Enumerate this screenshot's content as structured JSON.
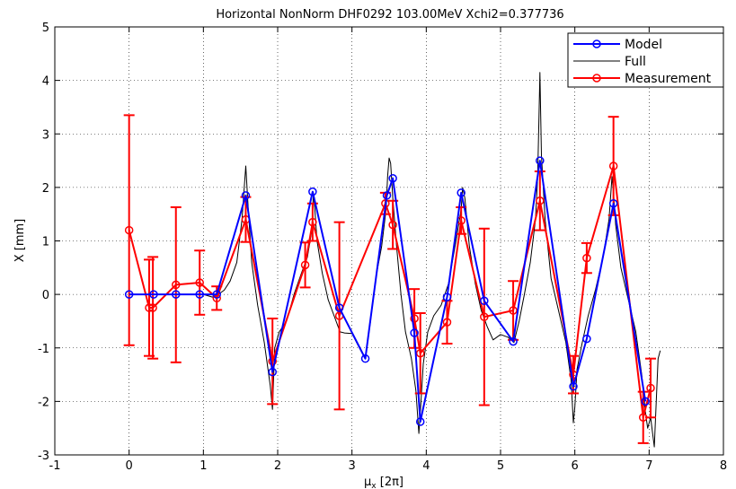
{
  "chart_data": {
    "type": "line",
    "title": "Horizontal NonNorm  DHF0292 103.00MeV Xchi2=0.377736",
    "xlabel": "μx [2π]",
    "xlabel_main": "μ",
    "xlabel_sub": "x",
    "xlabel_unit": " [2π]",
    "ylabel": "X [mm]",
    "xlim": [
      -1,
      8
    ],
    "ylim": [
      -3,
      5
    ],
    "xticks": [
      -1,
      0,
      1,
      2,
      3,
      4,
      5,
      6,
      7,
      8
    ],
    "yticks": [
      -3,
      -2,
      -1,
      0,
      1,
      2,
      3,
      4,
      5
    ],
    "grid": true,
    "legend_position": "top-right",
    "series": [
      {
        "name": "Model",
        "color": "#0000ff",
        "marker": "circle",
        "x": [
          0,
          0.33,
          0.63,
          0.95,
          1.18,
          1.57,
          1.93,
          2.47,
          2.83,
          3.18,
          3.47,
          3.55,
          3.84,
          3.92,
          4.28,
          4.47,
          4.78,
          5.17,
          5.53,
          5.98,
          6.16,
          6.52,
          6.95
        ],
        "y": [
          0.0,
          0.0,
          0.0,
          0.0,
          0.0,
          1.85,
          -1.45,
          1.92,
          -0.25,
          -1.2,
          1.85,
          2.17,
          -0.72,
          -2.38,
          -0.05,
          1.9,
          -0.12,
          -0.88,
          2.5,
          -1.72,
          -0.83,
          1.7,
          -2.0
        ]
      },
      {
        "name": "Full",
        "color": "#000000",
        "marker": "none",
        "x": [
          1.0,
          1.12,
          1.2,
          1.28,
          1.36,
          1.45,
          1.52,
          1.55,
          1.57,
          1.6,
          1.65,
          1.73,
          1.82,
          1.9,
          1.93,
          1.96,
          2.02,
          2.12,
          2.22,
          2.32,
          2.4,
          2.46,
          2.48,
          2.5,
          2.53,
          2.6,
          2.68,
          2.76,
          2.84,
          2.9,
          3.0,
          3.1,
          3.18,
          3.25,
          3.32,
          3.4,
          3.46,
          3.48,
          3.5,
          3.52,
          3.55,
          3.6,
          3.66,
          3.72,
          3.8,
          3.86,
          3.9,
          3.92,
          3.96,
          4.02,
          4.1,
          4.2,
          4.3,
          4.4,
          4.47,
          4.49,
          4.52,
          4.58,
          4.66,
          4.74,
          4.82,
          4.9,
          5.0,
          5.1,
          5.18,
          5.25,
          5.32,
          5.4,
          5.47,
          5.5,
          5.52,
          5.53,
          5.55,
          5.6,
          5.68,
          5.78,
          5.88,
          5.95,
          5.98,
          6.0,
          6.03,
          6.1,
          6.18,
          6.28,
          6.38,
          6.46,
          6.5,
          6.52,
          6.55,
          6.62,
          6.72,
          6.82,
          6.9,
          6.95,
          6.98,
          7.02,
          7.07,
          7.12,
          7.15
        ],
        "y": [
          0.0,
          -0.05,
          0.0,
          0.08,
          0.25,
          0.6,
          1.4,
          2.0,
          2.4,
          1.7,
          0.6,
          -0.2,
          -0.9,
          -1.7,
          -2.15,
          -1.0,
          -0.7,
          -0.5,
          0.0,
          0.4,
          0.7,
          1.2,
          1.9,
          1.6,
          1.0,
          0.4,
          -0.1,
          -0.4,
          -0.7,
          -0.72,
          -0.73,
          -1.0,
          -1.2,
          -0.5,
          0.3,
          0.9,
          1.6,
          2.2,
          2.55,
          2.45,
          1.8,
          0.9,
          0.0,
          -0.7,
          -1.2,
          -1.8,
          -2.6,
          -2.2,
          -1.3,
          -0.7,
          -0.4,
          -0.2,
          0.2,
          1.0,
          1.6,
          2.0,
          1.8,
          0.9,
          0.2,
          -0.3,
          -0.6,
          -0.85,
          -0.75,
          -0.8,
          -0.9,
          -0.5,
          0.0,
          0.6,
          1.4,
          2.2,
          3.5,
          4.15,
          2.6,
          1.4,
          0.3,
          -0.3,
          -0.9,
          -1.6,
          -2.4,
          -2.1,
          -1.4,
          -0.9,
          -0.4,
          0.1,
          0.7,
          1.4,
          2.2,
          1.9,
          1.3,
          0.5,
          -0.1,
          -0.7,
          -1.5,
          -2.2,
          -2.5,
          -2.3,
          -2.85,
          -1.2,
          -1.05
        ]
      },
      {
        "name": "Measurement",
        "color": "#ff0000",
        "marker": "circle",
        "x": [
          0.0,
          0.27,
          0.32,
          0.63,
          0.95,
          1.18,
          1.57,
          1.93,
          2.37,
          2.47,
          2.83,
          3.45,
          3.55,
          3.84,
          3.92,
          4.28,
          4.47,
          4.78,
          5.17,
          5.53,
          5.98,
          6.16,
          6.52,
          6.92,
          7.02
        ],
        "y": [
          1.2,
          -0.25,
          -0.25,
          0.18,
          0.22,
          -0.07,
          1.4,
          -1.25,
          0.55,
          1.35,
          -0.4,
          1.7,
          1.3,
          -0.45,
          -1.1,
          -0.52,
          1.38,
          -0.42,
          -0.3,
          1.75,
          -1.5,
          0.68,
          2.4,
          -2.3,
          -1.75
        ],
        "err": [
          2.15,
          0.9,
          0.95,
          1.45,
          0.6,
          0.22,
          0.42,
          0.8,
          0.42,
          0.35,
          1.75,
          0.2,
          0.45,
          0.55,
          0.75,
          0.4,
          0.25,
          1.65,
          0.55,
          0.55,
          0.35,
          0.28,
          0.92,
          0.48,
          0.55
        ]
      }
    ]
  }
}
